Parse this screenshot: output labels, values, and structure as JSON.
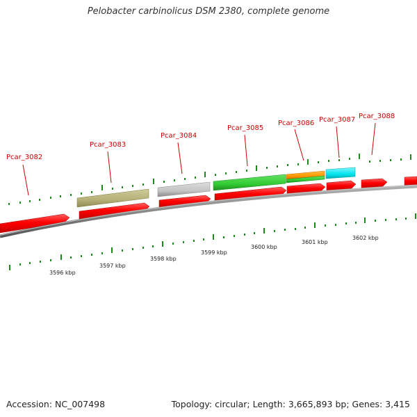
{
  "title": "Pelobacter carbinolicus DSM 2380, complete genome",
  "footer": {
    "accession": "Accession: NC_007498",
    "summary": "Topology: circular; Length: 3,665,893 bp; Genes: 3,415"
  },
  "genes": [
    {
      "label": "Pcar_3082"
    },
    {
      "label": "Pcar_3083"
    },
    {
      "label": "Pcar_3084"
    },
    {
      "label": "Pcar_3085"
    },
    {
      "label": "Pcar_3086"
    },
    {
      "label": "Pcar_3087"
    },
    {
      "label": "Pcar_3088"
    }
  ],
  "ruler": [
    {
      "label": "3596 kbp"
    },
    {
      "label": "3597 kbp"
    },
    {
      "label": "3598 kbp"
    },
    {
      "label": "3599 kbp"
    },
    {
      "label": "3600 kbp"
    },
    {
      "label": "3601 kbp"
    },
    {
      "label": "3602 kbp"
    }
  ],
  "colors": {
    "cds": "#ff0000",
    "backbone": "#888888",
    "tick": "#1a8a1a",
    "label": "#cc0000",
    "feature_olive": "#b5b078",
    "feature_gray": "#c4c4c4",
    "feature_green": "#33cc33",
    "feature_orange": "#ff9900",
    "feature_cyan": "#00e5ee"
  }
}
